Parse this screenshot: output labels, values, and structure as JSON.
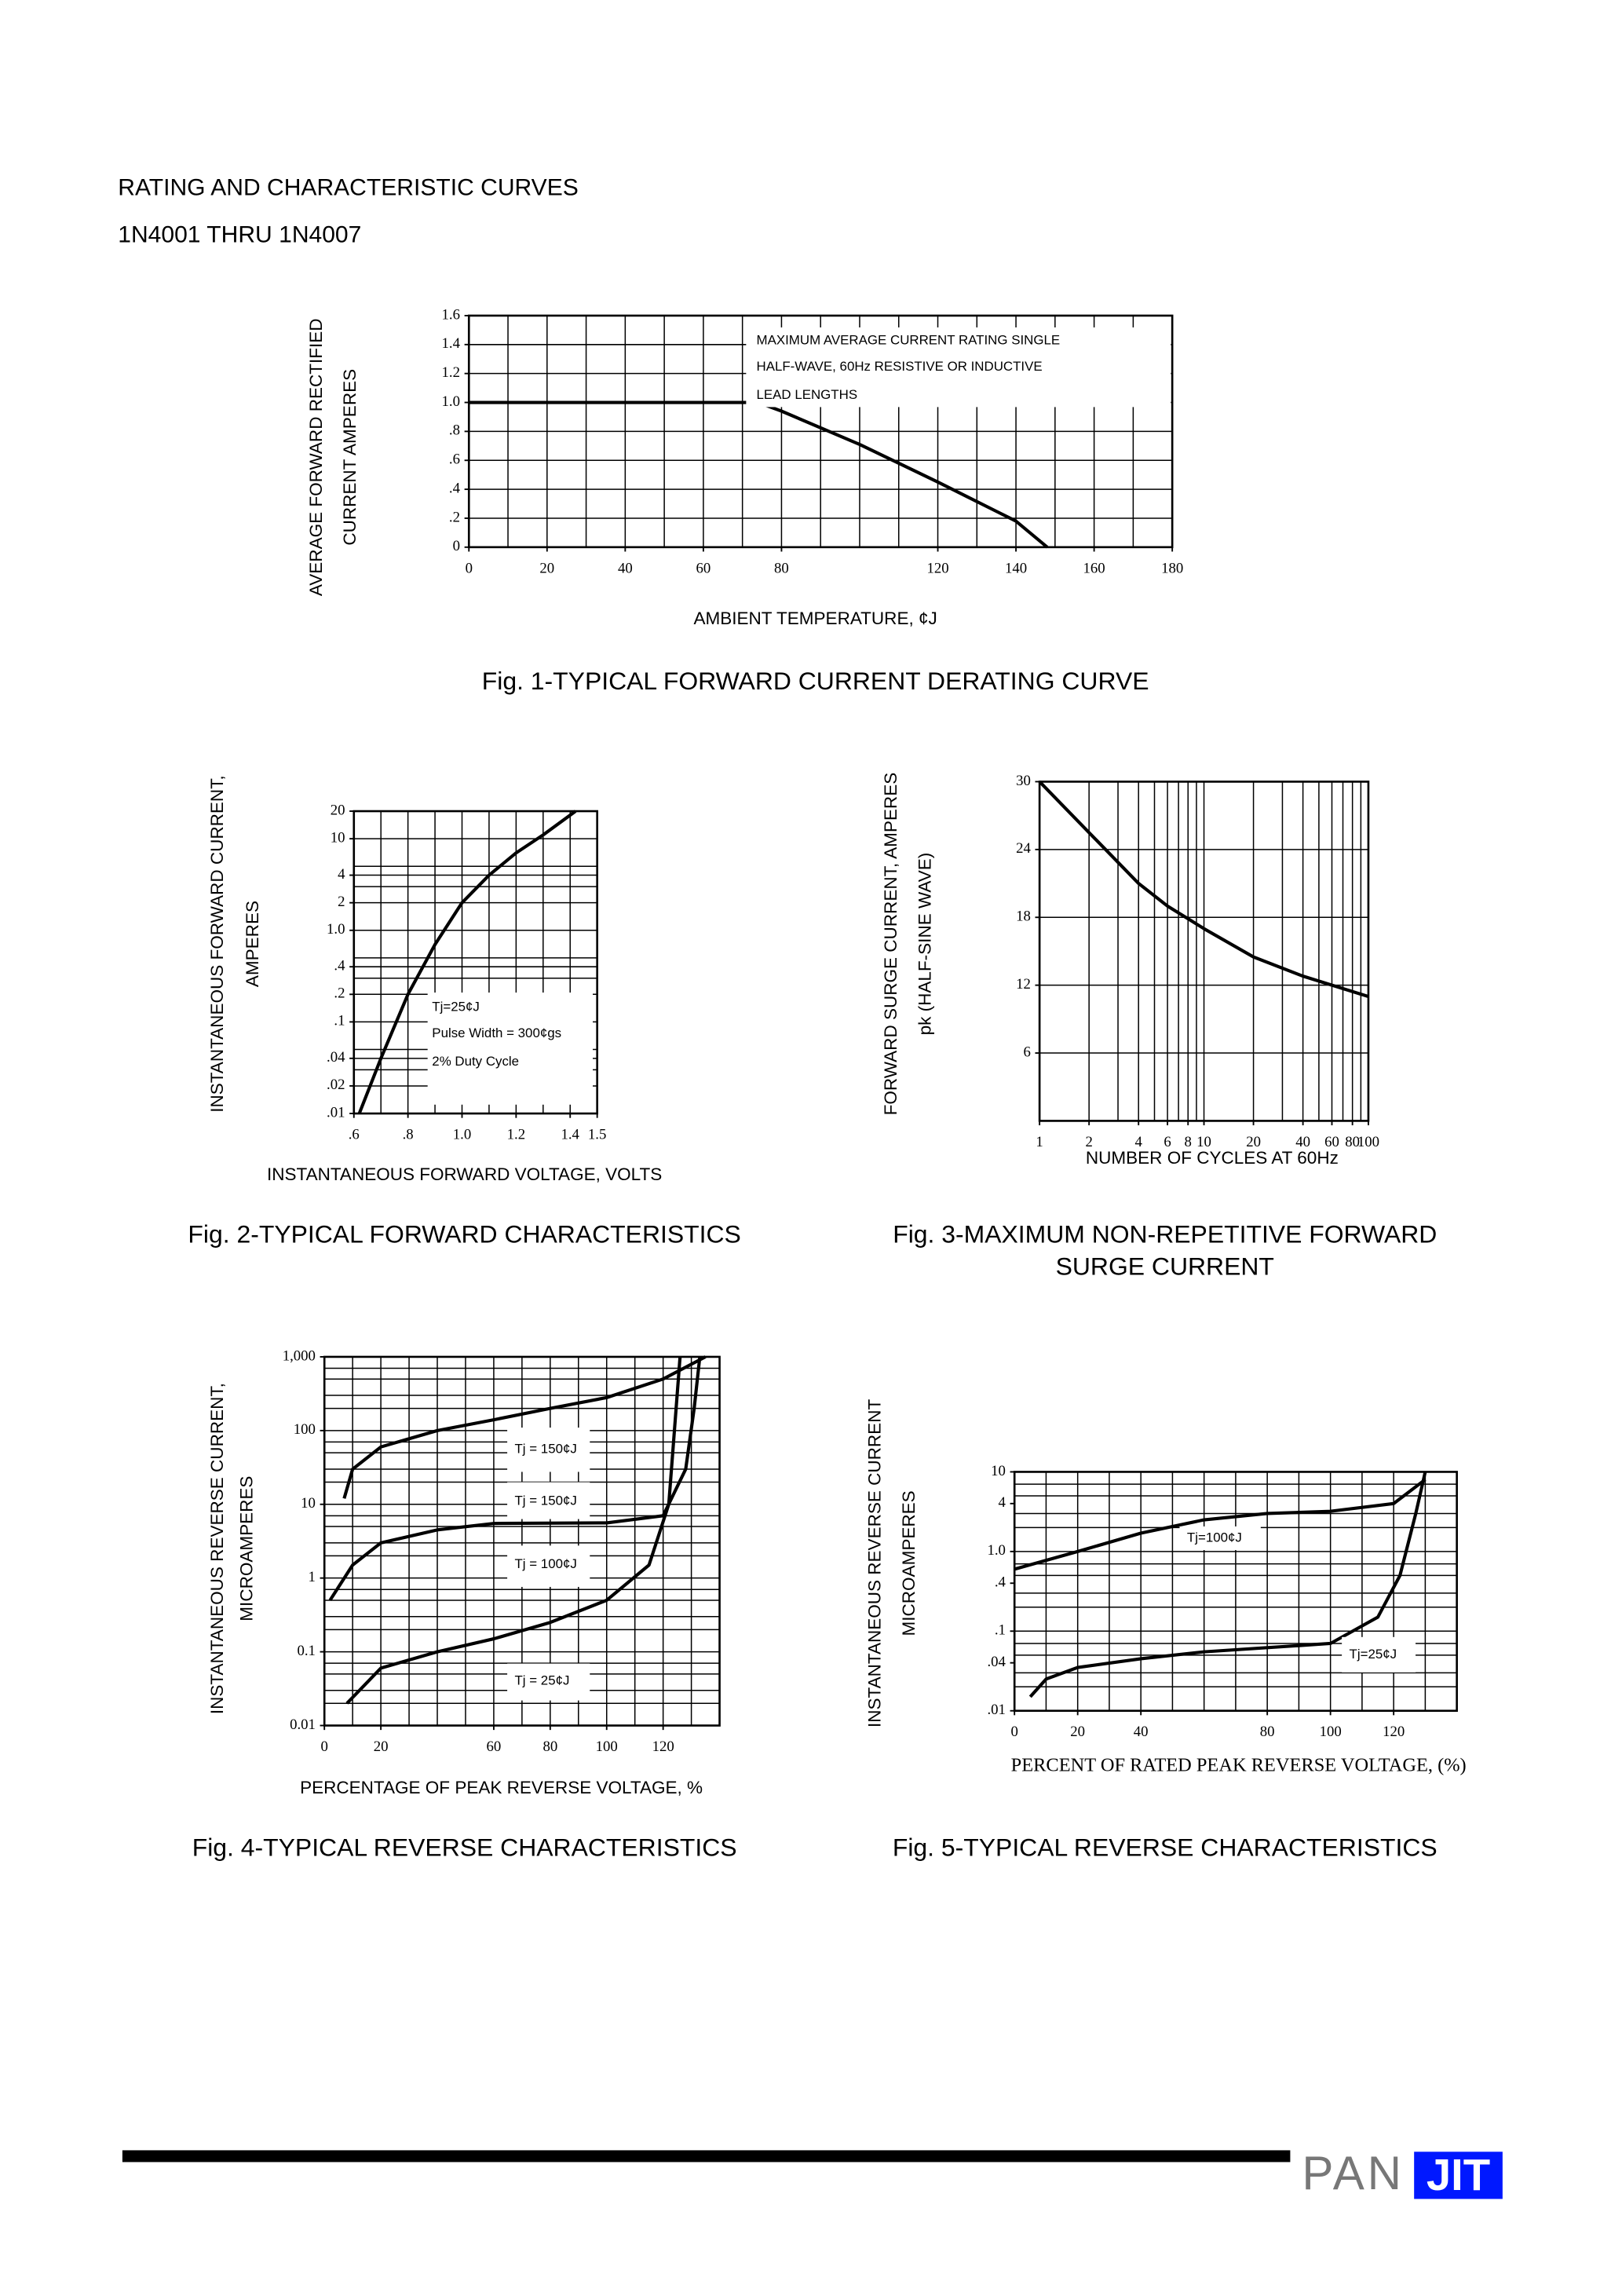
{
  "header": {
    "title": "RATING AND CHARACTERISTIC CURVES",
    "subtitle": "1N4001 THRU 1N4007"
  },
  "chart_data": [
    {
      "type": "line",
      "title": [
        "Fig. 1-TYPICAL FORWARD CURRENT DERATING CURVE"
      ],
      "ylabel": [
        "AVERAGE FORWARD RECTIFIED",
        "CURRENT AMPERES"
      ],
      "xlabel": "AMBIENT TEMPERATURE, ¢J",
      "xlim": [
        0,
        180
      ],
      "ylim": [
        0,
        1.6
      ],
      "xticks": [
        0,
        20,
        40,
        60,
        80,
        120,
        140,
        160,
        180
      ],
      "yticks": [
        0,
        {
          "value": 0.2,
          "label": ".2"
        },
        {
          "value": 0.4,
          "label": ".4"
        },
        {
          "value": 0.6,
          "label": ".6"
        },
        {
          "value": 0.8,
          "label": ".8"
        },
        {
          "value": 1,
          "label": "1.0"
        },
        1.2,
        1.4,
        1.6
      ],
      "xgrid": [
        0,
        10,
        20,
        30,
        40,
        50,
        60,
        70,
        80,
        90,
        100,
        110,
        120,
        130,
        140,
        150,
        160,
        170,
        180
      ],
      "ygrid": [
        0,
        0.2,
        0.4,
        0.6,
        0.8,
        1,
        1.2,
        1.4,
        1.6
      ],
      "series": [
        {
          "color": "#000000",
          "x": [
            0,
            74,
            80,
            100,
            120,
            140,
            148
          ],
          "values": [
            1,
            1,
            0.94,
            0.71,
            0.45,
            0.18,
            0
          ]
        }
      ],
      "annotations": [
        "MAXIMUM AVERAGE CURRENT RATING SINGLE",
        "HALF-WAVE, 60Hz RESISTIVE OR INDUCTIVE",
        "LEAD LENGTHS"
      ]
    },
    {
      "type": "line",
      "title": [
        "Fig. 2-TYPICAL FORWARD CHARACTERISTICS"
      ],
      "ylabel": [
        "INSTANTANEOUS FORWARD CURRENT,",
        "AMPERES"
      ],
      "xlabel": "INSTANTANEOUS FORWARD VOLTAGE, VOLTS",
      "xlim": [
        0.6,
        1.5
      ],
      "ylim": [
        0.01,
        20
      ],
      "yscale": "log",
      "xticks": [
        {
          "value": 0.6,
          "label": ".6"
        },
        {
          "value": 0.8,
          "label": ".8"
        },
        {
          "value": 1,
          "label": "1.0"
        },
        1.2,
        1.4,
        1.5
      ],
      "yticks": [
        20,
        10,
        4,
        2,
        {
          "value": 1,
          "label": "1.0"
        },
        {
          "value": 0.4,
          "label": ".4"
        },
        {
          "value": 0.2,
          "label": ".2"
        },
        {
          "value": 0.1,
          "label": ".1"
        },
        {
          "value": 0.04,
          "label": ".04"
        },
        {
          "value": 0.02,
          "label": ".02"
        },
        {
          "value": 0.01,
          "label": ".01"
        }
      ],
      "xgrid": [
        0.6,
        0.7,
        0.8,
        0.9,
        1,
        1.1,
        1.2,
        1.3,
        1.4,
        1.5
      ],
      "ygrid": [
        0.01,
        0.02,
        0.03,
        0.04,
        0.05,
        0.1,
        0.2,
        0.3,
        0.4,
        0.5,
        1,
        2,
        3,
        4,
        5,
        10,
        20
      ],
      "series": [
        {
          "color": "#000000",
          "x": [
            0.62,
            0.7,
            0.8,
            0.9,
            1,
            1.1,
            1.2,
            1.3,
            1.42
          ],
          "values": [
            0.01,
            0.04,
            0.2,
            0.7,
            2,
            4,
            7,
            11,
            20
          ]
        }
      ],
      "annotations": [
        "Tj=25¢J",
        "Pulse Width = 300¢gs",
        "2% Duty Cycle"
      ]
    },
    {
      "type": "line",
      "title": [
        "Fig. 3-MAXIMUM NON-REPETITIVE FORWARD",
        "SURGE CURRENT"
      ],
      "ylabel": [
        "FORWARD SURGE CURRENT, AMPERES",
        "pk (HALF-SINE WAVE)"
      ],
      "xlabel": "NUMBER OF CYCLES AT 60Hz",
      "xlim": [
        1,
        100
      ],
      "ylim": [
        0,
        30
      ],
      "xscale": "log",
      "xticks": [
        1,
        2,
        4,
        6,
        8,
        10,
        20,
        40,
        60,
        80,
        100
      ],
      "yticks": [
        30,
        24,
        18,
        12,
        6
      ],
      "xgrid": [
        1,
        2,
        3,
        4,
        5,
        6,
        7,
        8,
        9,
        10,
        20,
        30,
        40,
        50,
        60,
        70,
        80,
        90,
        100
      ],
      "ygrid": [
        6,
        12,
        18,
        24,
        30
      ],
      "series": [
        {
          "color": "#000000",
          "x": [
            1,
            2,
            4,
            6,
            10,
            20,
            40,
            100
          ],
          "values": [
            30,
            25.5,
            21,
            19,
            17,
            14.5,
            12.8,
            11
          ]
        }
      ],
      "annotations": []
    },
    {
      "type": "line",
      "title": [
        "Fig. 4-TYPICAL REVERSE CHARACTERISTICS"
      ],
      "ylabel": [
        "INSTANTANEOUS REVERSE CURRENT,",
        "MICROAMPERES"
      ],
      "xlabel": "PERCENTAGE OF PEAK REVERSE VOLTAGE, %",
      "xlim": [
        0,
        140
      ],
      "ylim": [
        0.01,
        1000
      ],
      "yscale": "log",
      "xticks": [
        0,
        20,
        60,
        80,
        100,
        120
      ],
      "yticks": [
        {
          "value": 1000,
          "label": "1,000"
        },
        100,
        10,
        1,
        0.1,
        0.01
      ],
      "xgrid": [
        0,
        10,
        20,
        30,
        40,
        50,
        60,
        70,
        80,
        90,
        100,
        110,
        120,
        130,
        140
      ],
      "ygrid": [
        0.01,
        0.02,
        0.03,
        0.05,
        0.07,
        0.1,
        0.2,
        0.3,
        0.5,
        0.7,
        1,
        2,
        3,
        5,
        7,
        10,
        20,
        30,
        50,
        70,
        100,
        200,
        300,
        500,
        700,
        1000
      ],
      "series": [
        {
          "color": "#000000",
          "x": [
            7,
            10,
            20,
            40,
            60,
            80,
            100,
            120,
            135
          ],
          "values": [
            12,
            30,
            60,
            100,
            140,
            200,
            280,
            500,
            1000
          ]
        },
        {
          "color": "#000000",
          "x": [
            2,
            10,
            20,
            40,
            60,
            100,
            120,
            128,
            131,
            133
          ],
          "values": [
            0.5,
            1.5,
            3,
            4.5,
            5.5,
            5.6,
            7,
            30,
            200,
            1000
          ]
        },
        {
          "color": "#000000",
          "x": [
            8,
            20,
            40,
            60,
            80,
            100,
            115,
            122,
            124,
            126
          ],
          "values": [
            0.02,
            0.06,
            0.1,
            0.15,
            0.25,
            0.5,
            1.5,
            10,
            100,
            1000
          ]
        }
      ],
      "annotations": [
        "Tj = 150¢J",
        "Tj = 150¢J",
        "Tj = 100¢J",
        "Tj = 25¢J"
      ]
    },
    {
      "type": "line",
      "title": [
        "Fig. 5-TYPICAL REVERSE CHARACTERISTICS"
      ],
      "ylabel": [
        "INSTANTANEOUS REVERSE CURRENT",
        "MICROAMPERES"
      ],
      "xlabel": "PERCENT OF RATED PEAK REVERSE VOLTAGE, (%)",
      "xlim": [
        0,
        140
      ],
      "ylim": [
        0.01,
        10
      ],
      "yscale": "log",
      "xticks": [
        0,
        20,
        40,
        80,
        100,
        120
      ],
      "yticks": [
        10,
        4,
        {
          "value": 1,
          "label": "1.0"
        },
        {
          "value": 0.4,
          "label": ".4"
        },
        {
          "value": 0.1,
          "label": ".1"
        },
        {
          "value": 0.04,
          "label": ".04"
        },
        {
          "value": 0.01,
          "label": ".01"
        }
      ],
      "xgrid": [
        0,
        10,
        20,
        30,
        40,
        50,
        60,
        70,
        80,
        90,
        100,
        110,
        120,
        130,
        140
      ],
      "ygrid": [
        0.01,
        0.02,
        0.03,
        0.05,
        0.07,
        0.1,
        0.2,
        0.3,
        0.5,
        0.7,
        1,
        2,
        3,
        5,
        7,
        10
      ],
      "series": [
        {
          "color": "#000000",
          "x": [
            0,
            20,
            40,
            60,
            80,
            100,
            120,
            130
          ],
          "values": [
            0.6,
            1,
            1.7,
            2.5,
            3,
            3.2,
            4,
            8
          ]
        },
        {
          "color": "#000000",
          "x": [
            5,
            10,
            20,
            40,
            60,
            100,
            115,
            122,
            127,
            130
          ],
          "values": [
            0.015,
            0.025,
            0.035,
            0.045,
            0.055,
            0.07,
            0.15,
            0.5,
            3,
            10
          ]
        }
      ],
      "annotations": [
        "Tj=100¢J",
        "Tj=25¢J"
      ]
    }
  ],
  "footer": {
    "logo": [
      "PAN",
      "JIT"
    ]
  }
}
